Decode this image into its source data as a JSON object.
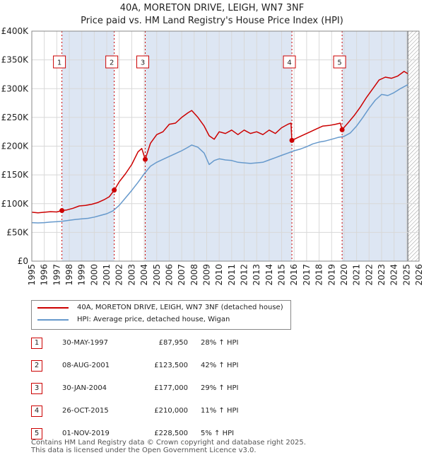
{
  "title_line1": "40A, MORETON DRIVE, LEIGH, WN7 3NF",
  "title_line2": "Price paid vs. HM Land Registry's House Price Index (HPI)",
  "legend": {
    "property": "40A, MORETON DRIVE, LEIGH, WN7 3NF (detached house)",
    "hpi": "HPI: Average price, detached house, Wigan"
  },
  "colors": {
    "property": "#cc0000",
    "hpi": "#6699cc",
    "shade": "#dde6f3",
    "hatch": "#9a9a9a"
  },
  "sales": [
    {
      "num": "1",
      "date": "30-MAY-1997",
      "price": "£87,950",
      "pct": "28% ↑ HPI"
    },
    {
      "num": "2",
      "date": "08-AUG-2001",
      "price": "£123,500",
      "pct": "42% ↑ HPI"
    },
    {
      "num": "3",
      "date": "30-JAN-2004",
      "price": "£177,000",
      "pct": "29% ↑ HPI"
    },
    {
      "num": "4",
      "date": "26-OCT-2015",
      "price": "£210,000",
      "pct": "11% ↑ HPI"
    },
    {
      "num": "5",
      "date": "01-NOV-2019",
      "price": "£228,500",
      "pct": "5% ↑ HPI"
    }
  ],
  "footer_line1": "Contains HM Land Registry data © Crown copyright and database right 2025.",
  "footer_line2": "This data is licensed under the Open Government Licence v3.0.",
  "chart_data": {
    "type": "line",
    "title": "40A, MORETON DRIVE, LEIGH, WN7 3NF — Price paid vs. HM Land Registry's House Price Index (HPI)",
    "xlabel": "",
    "ylabel": "",
    "xlim": [
      1995,
      2026
    ],
    "ylim": [
      0,
      400000
    ],
    "y_ticks": [
      0,
      50000,
      100000,
      150000,
      200000,
      250000,
      300000,
      350000,
      400000
    ],
    "y_tick_labels": [
      "£0",
      "£50K",
      "£100K",
      "£150K",
      "£200K",
      "£250K",
      "£300K",
      "£350K",
      "£400K"
    ],
    "x_ticks": [
      "1995",
      "1996",
      "1997",
      "1998",
      "1999",
      "2000",
      "2001",
      "2002",
      "2003",
      "2004",
      "2005",
      "2006",
      "2007",
      "2008",
      "2009",
      "2010",
      "2011",
      "2012",
      "2013",
      "2014",
      "2015",
      "2016",
      "2017",
      "2018",
      "2019",
      "2020",
      "2021",
      "2022",
      "2023",
      "2024",
      "2025",
      "2026"
    ],
    "shaded_ranges": [
      [
        1997.41,
        2001.6
      ],
      [
        2004.08,
        2015.82
      ],
      [
        2019.84,
        2025.1
      ]
    ],
    "hatched_range": [
      2025.1,
      2026
    ],
    "sale_markers": [
      {
        "label": "1",
        "x": 1997.41,
        "y": 87950
      },
      {
        "label": "2",
        "x": 2001.6,
        "y": 123500
      },
      {
        "label": "3",
        "x": 2004.08,
        "y": 177000
      },
      {
        "label": "4",
        "x": 2015.82,
        "y": 210000
      },
      {
        "label": "5",
        "x": 2019.84,
        "y": 228500
      }
    ],
    "series": [
      {
        "name": "40A, MORETON DRIVE, LEIGH, WN7 3NF (detached house)",
        "x": [
          1995,
          1995.5,
          1996,
          1996.5,
          1997,
          1997.41,
          1997.8,
          1998.3,
          1998.8,
          1999.3,
          1999.8,
          2000.3,
          2000.8,
          2001.2,
          2001.6,
          2002.0,
          2002.5,
          2003.0,
          2003.5,
          2003.8,
          2004.08,
          2004.5,
          2005.0,
          2005.5,
          2006.0,
          2006.5,
          2007.0,
          2007.5,
          2007.8,
          2008.3,
          2008.8,
          2009.2,
          2009.6,
          2010.0,
          2010.5,
          2011.0,
          2011.5,
          2012.0,
          2012.5,
          2013.0,
          2013.5,
          2014.0,
          2014.5,
          2015.0,
          2015.5,
          2015.75,
          2015.82,
          2016.3,
          2016.8,
          2017.3,
          2017.8,
          2018.3,
          2018.8,
          2019.3,
          2019.7,
          2019.84,
          2020.3,
          2020.8,
          2021.3,
          2021.8,
          2022.3,
          2022.8,
          2023.3,
          2023.8,
          2024.3,
          2024.8,
          2025.1
        ],
        "values": [
          85000,
          84000,
          85000,
          86000,
          85500,
          87950,
          89000,
          92000,
          96000,
          97000,
          99000,
          102000,
          107000,
          112000,
          123500,
          138000,
          152000,
          168000,
          190000,
          196000,
          177000,
          205000,
          220000,
          225000,
          238000,
          240000,
          250000,
          258000,
          262000,
          250000,
          235000,
          218000,
          212000,
          225000,
          222000,
          228000,
          220000,
          228000,
          222000,
          225000,
          220000,
          228000,
          222000,
          232000,
          238000,
          240000,
          210000,
          215000,
          220000,
          225000,
          230000,
          235000,
          236000,
          238000,
          240000,
          228500,
          240000,
          253000,
          268000,
          285000,
          300000,
          315000,
          320000,
          318000,
          322000,
          330000,
          326000
        ]
      },
      {
        "name": "HPI: Average price, detached house, Wigan",
        "x": [
          1995,
          1995.5,
          1996,
          1996.5,
          1997,
          1997.5,
          1998,
          1998.5,
          1999,
          1999.5,
          2000,
          2000.5,
          2001,
          2001.5,
          2002,
          2002.5,
          2003,
          2003.5,
          2004,
          2004.5,
          2005,
          2005.5,
          2006,
          2006.5,
          2007,
          2007.5,
          2007.8,
          2008.3,
          2008.8,
          2009.2,
          2009.6,
          2010,
          2010.5,
          2011,
          2011.5,
          2012,
          2012.5,
          2013,
          2013.5,
          2014,
          2014.5,
          2015,
          2015.5,
          2016,
          2016.5,
          2017,
          2017.5,
          2018,
          2018.5,
          2019,
          2019.5,
          2020,
          2020.5,
          2021,
          2021.5,
          2022,
          2022.5,
          2023,
          2023.5,
          2024,
          2024.5,
          2025.1
        ],
        "values": [
          67000,
          66500,
          67000,
          68000,
          68500,
          69500,
          71000,
          72500,
          73500,
          74500,
          76500,
          79500,
          82500,
          87500,
          97000,
          110000,
          123000,
          137000,
          152000,
          165000,
          172000,
          177000,
          182000,
          187000,
          192000,
          198000,
          202000,
          198000,
          188000,
          168000,
          175000,
          178000,
          176000,
          175000,
          172000,
          171000,
          170000,
          171000,
          172000,
          176000,
          180000,
          184000,
          188000,
          192000,
          195000,
          199000,
          204000,
          207000,
          209000,
          212000,
          215000,
          217000,
          223000,
          235000,
          250000,
          266000,
          280000,
          290000,
          288000,
          293000,
          300000,
          307000
        ]
      }
    ]
  }
}
